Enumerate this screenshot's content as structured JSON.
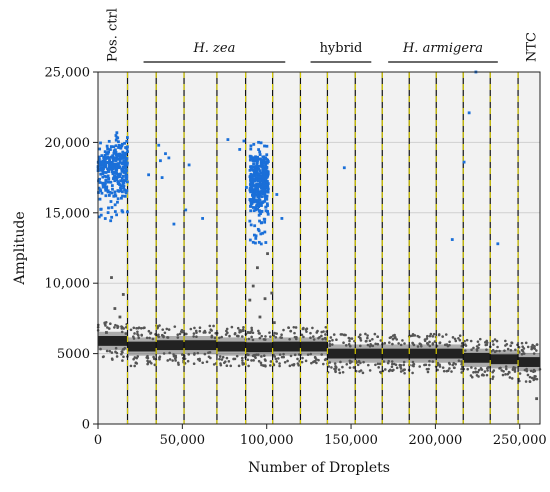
{
  "chart_data": {
    "type": "scatter",
    "title": "",
    "xlabel": "Number of Droplets",
    "ylabel": "Amplitude",
    "xlim": [
      0,
      262000
    ],
    "ylim": [
      0,
      25000
    ],
    "x_ticks": [
      0,
      50000,
      100000,
      150000,
      200000,
      250000
    ],
    "x_tick_labels": [
      "0",
      "50,000",
      "100,000",
      "150,000",
      "200,000",
      "250,000"
    ],
    "y_ticks": [
      0,
      5000,
      10000,
      15000,
      20000,
      25000
    ],
    "y_tick_labels": [
      "0",
      "5000",
      "10,000",
      "15,000",
      "20,000",
      "25,000"
    ],
    "grid": "horizontal",
    "colors": {
      "positive": "#1a6fd8",
      "negative": "#555555",
      "background": "#f2f2f2",
      "well_divider": "#d4c800"
    },
    "well_dividers": [
      17500,
      34500,
      51000,
      70500,
      87500,
      103500,
      120000,
      136000,
      152500,
      168500,
      184500,
      200500,
      216500,
      232500,
      249000
    ],
    "groups": [
      {
        "label": "Pos. ctrl",
        "style": "rotated",
        "x": 8500
      },
      {
        "label": "H. zea",
        "style": "italic",
        "x_range": [
          27000,
          111000
        ]
      },
      {
        "label": "hybrid",
        "style": "normal",
        "x_range": [
          126000,
          162000
        ]
      },
      {
        "label": "H. armigera",
        "style": "italic",
        "x_range": [
          172000,
          237000
        ]
      },
      {
        "label": "NTC",
        "style": "rotated",
        "x": 257000
      }
    ],
    "series": [
      {
        "name": "",
        "role": "negative-band",
        "segments": [
          {
            "x": [
              0,
              17500
            ],
            "center": 5900
          },
          {
            "x": [
              17500,
              34500
            ],
            "center": 5500
          },
          {
            "x": [
              34500,
              51000
            ],
            "center": 5600
          },
          {
            "x": [
              51000,
              70500
            ],
            "center": 5600
          },
          {
            "x": [
              70500,
              87500
            ],
            "center": 5500
          },
          {
            "x": [
              87500,
              103500
            ],
            "center": 5450
          },
          {
            "x": [
              103500,
              120000
            ],
            "center": 5500
          },
          {
            "x": [
              120000,
              136000
            ],
            "center": 5500
          },
          {
            "x": [
              136000,
              152500
            ],
            "center": 5000
          },
          {
            "x": [
              152500,
              168500
            ],
            "center": 5000
          },
          {
            "x": [
              168500,
              184500
            ],
            "center": 5000
          },
          {
            "x": [
              184500,
              200500
            ],
            "center": 5000
          },
          {
            "x": [
              200500,
              216500
            ],
            "center": 5000
          },
          {
            "x": [
              216500,
              232500
            ],
            "center": 4700
          },
          {
            "x": [
              232500,
              249000
            ],
            "center": 4600
          },
          {
            "x": [
              249000,
              262000
            ],
            "center": 4400
          }
        ]
      },
      {
        "name": "",
        "role": "positive-clusters",
        "clusters": [
          {
            "x": [
              0,
              17500
            ],
            "y_center": 18200,
            "y_spread": 1500,
            "count": 320
          },
          {
            "x": [
              90000,
              101000
            ],
            "y_center": 17200,
            "y_spread": 1700,
            "count": 380
          }
        ]
      }
    ],
    "sparse_points": [
      [
        36000,
        19800
      ],
      [
        38000,
        17500
      ],
      [
        40000,
        19200
      ],
      [
        37000,
        18700
      ],
      [
        42000,
        18900
      ],
      [
        30000,
        17700
      ],
      [
        45000,
        14200
      ],
      [
        52000,
        15200
      ],
      [
        54000,
        18400
      ],
      [
        62000,
        14600
      ],
      [
        77000,
        20200
      ],
      [
        84000,
        19500
      ],
      [
        86500,
        20100
      ],
      [
        88000,
        16800
      ],
      [
        96500,
        13500
      ],
      [
        109000,
        14600
      ],
      [
        106000,
        16300
      ],
      [
        146000,
        18200
      ],
      [
        210000,
        13100
      ],
      [
        217000,
        18600
      ],
      [
        220000,
        22100
      ],
      [
        237000,
        12800
      ],
      [
        224000,
        25000
      ],
      [
        5000,
        6500
      ],
      [
        10000,
        8200
      ],
      [
        13000,
        7600
      ],
      [
        15000,
        9200
      ],
      [
        8000,
        10400
      ],
      [
        90000,
        8800
      ],
      [
        92000,
        9800
      ],
      [
        94500,
        11100
      ],
      [
        96000,
        7600
      ],
      [
        99000,
        8900
      ],
      [
        89000,
        6500
      ],
      [
        104500,
        7200
      ],
      [
        100500,
        12100
      ],
      [
        103000,
        9300
      ],
      [
        260000,
        1800
      ]
    ]
  }
}
